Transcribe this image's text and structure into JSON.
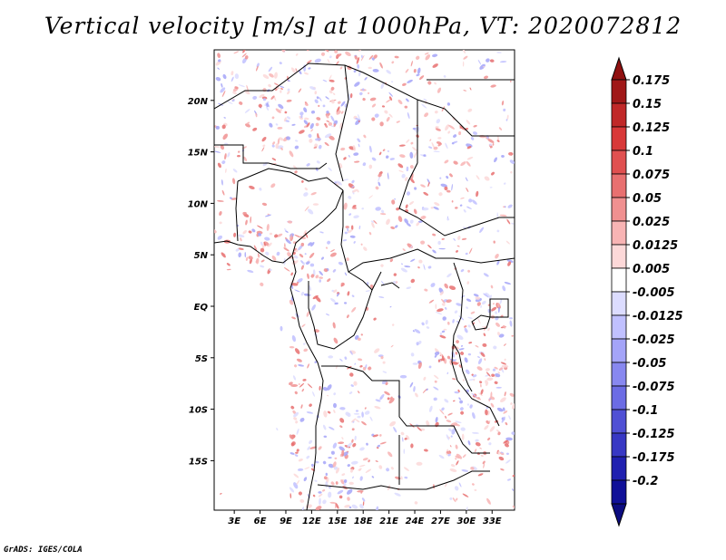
{
  "title": "Vertical velocity [m/s] at 1000hPa, VT: 2020072812",
  "credit": "GrADS: IGES/COLA",
  "map": {
    "lat_ticks": [
      {
        "lat": 20,
        "label": "20N"
      },
      {
        "lat": 15,
        "label": "15N"
      },
      {
        "lat": 10,
        "label": "10N"
      },
      {
        "lat": 5,
        "label": "5N"
      },
      {
        "lat": 0,
        "label": "EQ"
      },
      {
        "lat": -5,
        "label": "5S"
      },
      {
        "lat": -10,
        "label": "10S"
      },
      {
        "lat": -15,
        "label": "15S"
      }
    ],
    "lon_ticks": [
      {
        "lon": 3,
        "label": "3E"
      },
      {
        "lon": 6,
        "label": "6E"
      },
      {
        "lon": 9,
        "label": "9E"
      },
      {
        "lon": 12,
        "label": "12E"
      },
      {
        "lon": 15,
        "label": "15E"
      },
      {
        "lon": 18,
        "label": "18E"
      },
      {
        "lon": 21,
        "label": "21E"
      },
      {
        "lon": 24,
        "label": "24E"
      },
      {
        "lon": 27,
        "label": "27E"
      },
      {
        "lon": 30,
        "label": "30E"
      },
      {
        "lon": 33,
        "label": "33E"
      }
    ]
  },
  "colorbar": {
    "labels": [
      "0.175",
      "0.15",
      "0.125",
      "0.1",
      "0.075",
      "0.05",
      "0.025",
      "0.0125",
      "0.005",
      "-0.005",
      "-0.0125",
      "-0.025",
      "-0.05",
      "-0.075",
      "-0.1",
      "-0.125",
      "-0.175",
      "-0.2"
    ],
    "colors": [
      "#a01818",
      "#c02828",
      "#d83838",
      "#e05050",
      "#e87070",
      "#f09090",
      "#f8b4b4",
      "#fcd8d8",
      "#ffffff",
      "#dcdcff",
      "#c0c0ff",
      "#a4a4f8",
      "#8888f0",
      "#6c6ce4",
      "#5050d4",
      "#3838c4",
      "#2020b0",
      "#101098"
    ],
    "top_color": "#901010",
    "bottom_color": "#0c0c80"
  }
}
